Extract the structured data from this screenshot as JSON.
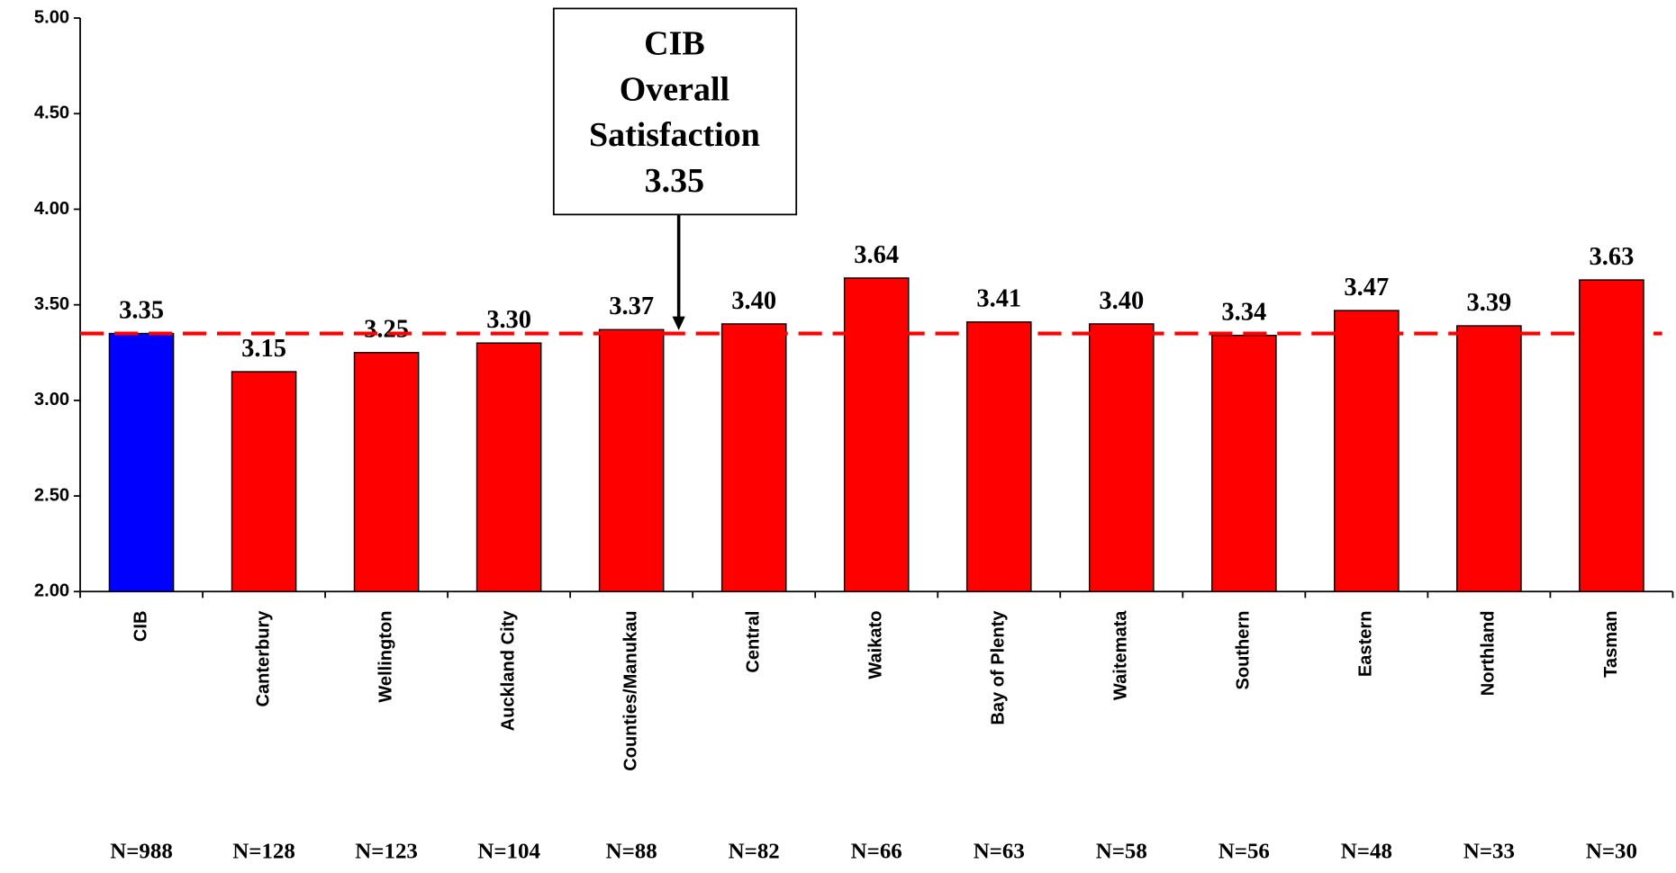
{
  "chart_data": {
    "type": "bar",
    "categories": [
      "CIB",
      "Canterbury",
      "Wellington",
      "Auckland City",
      "Counties/Manukau",
      "Central",
      "Waikato",
      "Bay of Plenty",
      "Waitemata",
      "Southern",
      "Eastern",
      "Northland",
      "Tasman"
    ],
    "values": [
      3.35,
      3.15,
      3.25,
      3.3,
      3.37,
      3.4,
      3.64,
      3.41,
      3.4,
      3.34,
      3.47,
      3.39,
      3.63
    ],
    "value_labels": [
      "3.35",
      "3.15",
      "3.25",
      "3.30",
      "3.37",
      "3.40",
      "3.64",
      "3.41",
      "3.40",
      "3.34",
      "3.47",
      "3.39",
      "3.63"
    ],
    "colors": [
      "#0000ff",
      "#ff0000",
      "#ff0000",
      "#ff0000",
      "#ff0000",
      "#ff0000",
      "#ff0000",
      "#ff0000",
      "#ff0000",
      "#ff0000",
      "#ff0000",
      "#ff0000",
      "#ff0000"
    ],
    "n_labels": [
      "N=988",
      "N=128",
      "N=123",
      "N=104",
      "N=88",
      "N=82",
      "N=66",
      "N=63",
      "N=58",
      "N=56",
      "N=48",
      "N=33",
      "N=30"
    ],
    "ylim": [
      2,
      5
    ],
    "yticks": [
      {
        "value": 2,
        "label": "2.00"
      },
      {
        "value": 2.5,
        "label": "2.50"
      },
      {
        "value": 3,
        "label": "3.00"
      },
      {
        "value": 3.5,
        "label": "3.50"
      },
      {
        "value": 4,
        "label": "4.00"
      },
      {
        "value": 4.5,
        "label": "4.50"
      },
      {
        "value": 5,
        "label": "5.00"
      }
    ],
    "reference_line": {
      "value": 3.35,
      "color": "#ff0000"
    },
    "annotation": {
      "lines": [
        "CIB",
        "Overall",
        "Satisfaction",
        "3.35"
      ]
    }
  }
}
